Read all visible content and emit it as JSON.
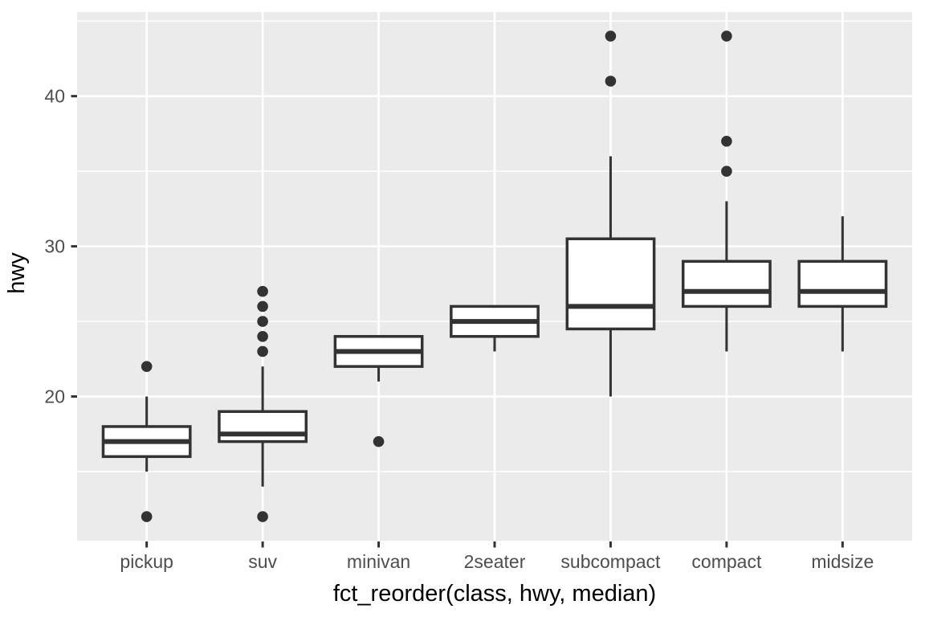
{
  "chart_data": {
    "type": "boxplot",
    "title": "",
    "xlabel": "fct_reorder(class, hwy, median)",
    "ylabel": "hwy",
    "categories": [
      "pickup",
      "suv",
      "minivan",
      "2seater",
      "subcompact",
      "compact",
      "midsize"
    ],
    "boxes": [
      {
        "category": "pickup",
        "whisker_low": 15,
        "q1": 16,
        "median": 17,
        "q3": 18,
        "whisker_high": 20,
        "outliers": [
          12,
          22
        ]
      },
      {
        "category": "suv",
        "whisker_low": 14,
        "q1": 17,
        "median": 17.5,
        "q3": 19,
        "whisker_high": 22,
        "outliers": [
          12,
          23,
          24,
          25,
          26,
          27
        ]
      },
      {
        "category": "minivan",
        "whisker_low": 21,
        "q1": 22,
        "median": 23,
        "q3": 24,
        "whisker_high": 24,
        "outliers": [
          17
        ]
      },
      {
        "category": "2seater",
        "whisker_low": 23,
        "q1": 24,
        "median": 25,
        "q3": 26,
        "whisker_high": 26,
        "outliers": []
      },
      {
        "category": "subcompact",
        "whisker_low": 20,
        "q1": 24.5,
        "median": 26,
        "q3": 30.5,
        "whisker_high": 36,
        "outliers": [
          41,
          44
        ]
      },
      {
        "category": "compact",
        "whisker_low": 23,
        "q1": 26,
        "median": 27,
        "q3": 29,
        "whisker_high": 33,
        "outliers": [
          35,
          37,
          44
        ]
      },
      {
        "category": "midsize",
        "whisker_low": 23,
        "q1": 26,
        "median": 27,
        "q3": 29,
        "whisker_high": 32,
        "outliers": []
      }
    ],
    "y_axis": {
      "major_ticks": [
        20,
        30,
        40
      ],
      "minor_ticks": [
        15,
        25,
        35,
        45
      ],
      "ylim": [
        10.4,
        45.6
      ]
    },
    "grid": "on",
    "legend": "none",
    "colors": {
      "panel_background": "#EBEBEB",
      "gridline": "#FFFFFF",
      "box_stroke": "#333333",
      "box_fill": "#FFFFFF",
      "outlier_point": "#333333",
      "tick_mark": "#333333",
      "tick_label_text": "#4D4D4D",
      "axis_title_text": "#000000",
      "figure_background": "#FFFFFF"
    }
  }
}
